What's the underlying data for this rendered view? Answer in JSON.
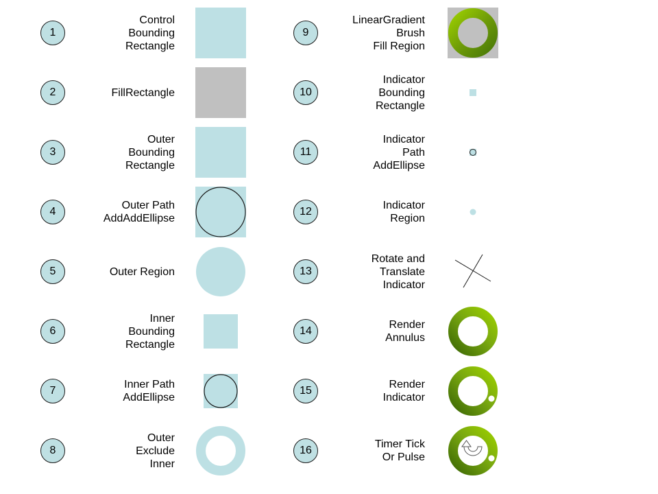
{
  "colors": {
    "step_circle_fill": "#bfe0e3",
    "shape_fill": "#bde0e4",
    "gray_fill": "#c0c0c0",
    "green_light": "#9acd00",
    "green_dark": "#4a7a08",
    "outline": "#1a1a1a"
  },
  "steps": [
    {
      "number": "1",
      "label": "Control\nBounding\nRectangle",
      "icon": "light-blue-square"
    },
    {
      "number": "2",
      "label": "FillRectangle",
      "icon": "gray-square"
    },
    {
      "number": "3",
      "label": "Outer\nBounding\nRectangle",
      "icon": "light-blue-square"
    },
    {
      "number": "4",
      "label": "Outer Path\nAddAddEllipse",
      "icon": "square-with-outlined-circle"
    },
    {
      "number": "5",
      "label": "Outer Region",
      "icon": "filled-circle"
    },
    {
      "number": "6",
      "label": "Inner\nBounding\nRectangle",
      "icon": "small-square"
    },
    {
      "number": "7",
      "label": "Inner Path\nAddEllipse",
      "icon": "small-square-with-outlined-circle"
    },
    {
      "number": "8",
      "label": "Outer\nExclude\nInner",
      "icon": "light-blue-ring"
    },
    {
      "number": "9",
      "label": "LinearGradient\nBrush\nFill Region",
      "icon": "green-ring-on-gray-square"
    },
    {
      "number": "10",
      "label": "Indicator\nBounding\nRectangle",
      "icon": "tiny-square"
    },
    {
      "number": "11",
      "label": "Indicator\nPath\nAddEllipse",
      "icon": "tiny-outlined-circle"
    },
    {
      "number": "12",
      "label": "Indicator\nRegion",
      "icon": "tiny-dot"
    },
    {
      "number": "13",
      "label": "Rotate and\nTranslate\nIndicator",
      "icon": "crossed-lines"
    },
    {
      "number": "14",
      "label": "Render\nAnnulus",
      "icon": "green-annulus"
    },
    {
      "number": "15",
      "label": "Render\nIndicator",
      "icon": "green-annulus-with-dot"
    },
    {
      "number": "16",
      "label": "Timer Tick\nOr Pulse",
      "icon": "green-annulus-with-rotate-arrow"
    }
  ]
}
